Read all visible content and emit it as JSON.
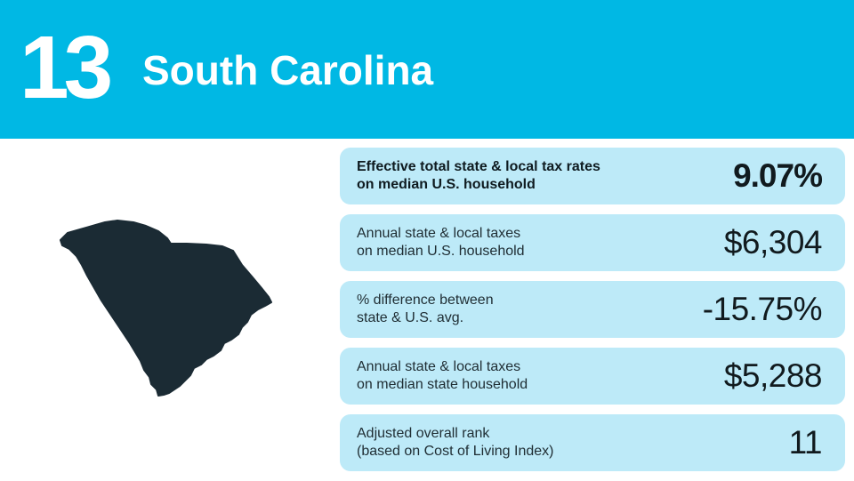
{
  "header": {
    "rank": "13",
    "state_name": "South Carolina"
  },
  "map": {
    "icon": "south-carolina-map-icon",
    "color": "#1b2b34"
  },
  "stats": [
    {
      "label_line1": "Effective total state & local tax rates",
      "label_line2": "on median U.S. household",
      "value": "9.07%"
    },
    {
      "label_line1": "Annual state & local taxes",
      "label_line2": "on median U.S. household",
      "value": "$6,304"
    },
    {
      "label_line1": "% difference between",
      "label_line2": "state & U.S. avg.",
      "value": "-15.75%"
    },
    {
      "label_line1": "Annual state & local taxes",
      "label_line2": "on median state household",
      "value": "$5,288"
    },
    {
      "label_line1": "Adjusted overall rank",
      "label_line2": "(based on Cost of Living Index)",
      "value": "11"
    }
  ],
  "colors": {
    "banner": "#00b8e4",
    "card": "#bdeaf8"
  }
}
